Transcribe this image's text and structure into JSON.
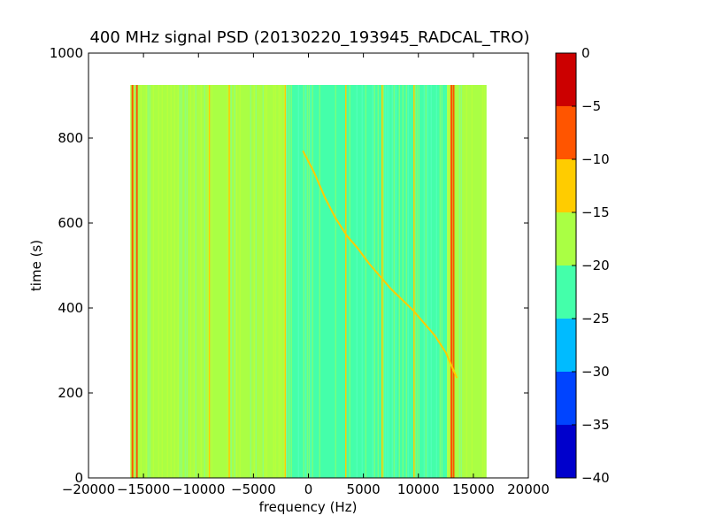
{
  "chart_data": {
    "type": "heatmap",
    "title": "400 MHz signal PSD (20130220_193945_RADCAL_TRO)",
    "xlabel": "frequency (Hz)",
    "ylabel": "time (s)",
    "xlim": [
      -20000,
      20000
    ],
    "ylim": [
      0,
      1000
    ],
    "x_ticks": [
      -20000,
      -15000,
      -10000,
      -5000,
      0,
      5000,
      10000,
      15000,
      20000
    ],
    "y_ticks": [
      0,
      200,
      400,
      600,
      800,
      1000
    ],
    "data_extent": {
      "x": [
        -16200,
        16200
      ],
      "y": [
        0,
        925
      ]
    },
    "colorbar": {
      "range": [
        -40,
        0
      ],
      "ticks": [
        0,
        -5,
        -10,
        -15,
        -20,
        -25,
        -30,
        -35,
        -40
      ],
      "levels": [
        {
          "from": -40,
          "to": -35,
          "color": "#0000cc"
        },
        {
          "from": -35,
          "to": -30,
          "color": "#0044ff"
        },
        {
          "from": -30,
          "to": -25,
          "color": "#00bbff"
        },
        {
          "from": -25,
          "to": -20,
          "color": "#44ffaa"
        },
        {
          "from": -20,
          "to": -15,
          "color": "#aaff44"
        },
        {
          "from": -15,
          "to": -10,
          "color": "#ffcc00"
        },
        {
          "from": -10,
          "to": -5,
          "color": "#ff5500"
        },
        {
          "from": -5,
          "to": 0,
          "color": "#cc0000"
        }
      ]
    },
    "background_regions": [
      {
        "x": [
          -16200,
          -2000
        ],
        "level": -17.5,
        "color": "#aaff44"
      },
      {
        "x": [
          -2000,
          12600
        ],
        "level": -22.5,
        "color": "#44ffaa"
      },
      {
        "x": [
          12600,
          16200
        ],
        "level": -17.5,
        "color": "#aaff44"
      }
    ],
    "vertical_lines": [
      {
        "x": -16000,
        "color": "#ff5500"
      },
      {
        "x": -15600,
        "color": "#ff5500"
      },
      {
        "x": -9000,
        "color": "#ffcc00"
      },
      {
        "x": -7200,
        "color": "#ffcc00"
      },
      {
        "x": -2100,
        "color": "#ffcc00"
      },
      {
        "x": 3400,
        "color": "#ffcc00"
      },
      {
        "x": 6700,
        "color": "#ffcc00"
      },
      {
        "x": 9600,
        "color": "#ffcc00"
      },
      {
        "x": 13000,
        "color": "#ff5500"
      },
      {
        "x": 13200,
        "color": "#ff5500"
      }
    ],
    "signal_trace": {
      "color": "#ffcc00",
      "x": [
        -500,
        500,
        1500,
        2500,
        3500,
        4500,
        5500,
        6500,
        7500,
        8500,
        9500,
        10500,
        11500,
        12500,
        13000,
        13500
      ],
      "y": [
        770,
        720,
        660,
        610,
        570,
        540,
        505,
        475,
        445,
        420,
        395,
        365,
        335,
        295,
        265,
        235
      ]
    }
  }
}
